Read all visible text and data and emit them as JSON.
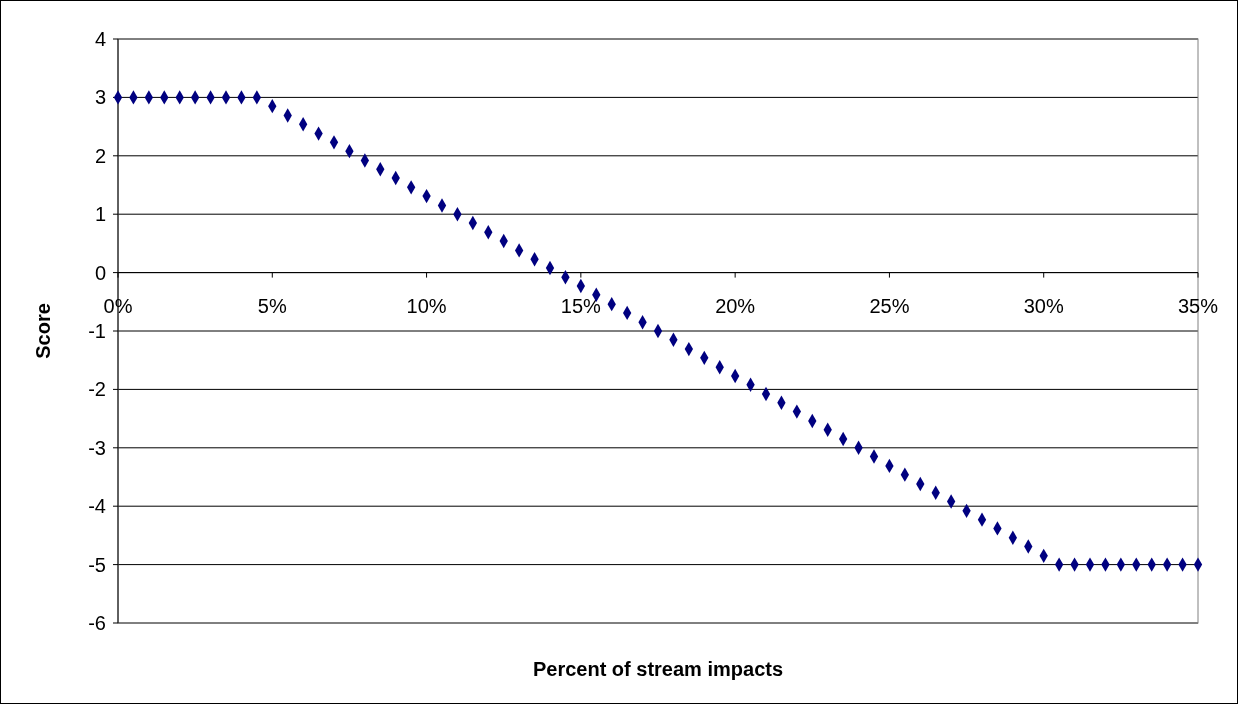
{
  "chart_data": {
    "type": "scatter",
    "xlabel": "Percent of stream impacts",
    "ylabel": "Score",
    "x": [
      0,
      0.5,
      1,
      1.5,
      2,
      2.5,
      3,
      3.5,
      4,
      4.5,
      5,
      5.5,
      6,
      6.5,
      7,
      7.5,
      8,
      8.5,
      9,
      9.5,
      10,
      10.5,
      11,
      11.5,
      12,
      12.5,
      13,
      13.5,
      14,
      14.5,
      15,
      15.5,
      16,
      16.5,
      17,
      17.5,
      18,
      18.5,
      19,
      19.5,
      20,
      20.5,
      21,
      21.5,
      22,
      22.5,
      23,
      23.5,
      24,
      24.5,
      25,
      25.5,
      26,
      26.5,
      27,
      27.5,
      28,
      28.5,
      29,
      29.5,
      30,
      30.5,
      31,
      31.5,
      32,
      32.5,
      33,
      33.5,
      34,
      34.5,
      35
    ],
    "series": [
      {
        "color": "#000080",
        "values": [
          3,
          3,
          3,
          3,
          3,
          3,
          3,
          3,
          3,
          3,
          2.85,
          2.69,
          2.54,
          2.38,
          2.23,
          2.08,
          1.92,
          1.77,
          1.62,
          1.46,
          1.31,
          1.15,
          1.0,
          0.85,
          0.69,
          0.54,
          0.38,
          0.23,
          0.08,
          -0.08,
          -0.23,
          -0.38,
          -0.54,
          -0.69,
          -0.85,
          -1.0,
          -1.15,
          -1.31,
          -1.46,
          -1.62,
          -1.77,
          -1.92,
          -2.08,
          -2.23,
          -2.38,
          -2.54,
          -2.69,
          -2.85,
          -3.0,
          -3.15,
          -3.31,
          -3.46,
          -3.62,
          -3.77,
          -3.92,
          -4.08,
          -4.23,
          -4.38,
          -4.54,
          -4.69,
          -4.85,
          -5,
          -5,
          -5,
          -5,
          -5,
          -5,
          -5,
          -5,
          -5,
          -5
        ]
      }
    ],
    "xlim": [
      0,
      35
    ],
    "xticks": [
      {
        "value": 0,
        "label": "0%"
      },
      {
        "value": 5,
        "label": "5%"
      },
      {
        "value": 10,
        "label": "10%"
      },
      {
        "value": 15,
        "label": "15%"
      },
      {
        "value": 20,
        "label": "20%"
      },
      {
        "value": 25,
        "label": "25%"
      },
      {
        "value": 30,
        "label": "30%"
      },
      {
        "value": 35,
        "label": "35%"
      }
    ],
    "ylim": [
      -6,
      4
    ],
    "yticks": [
      -6,
      -5,
      -4,
      -3,
      -2,
      -1,
      0,
      1,
      2,
      3,
      4
    ],
    "grid": "y",
    "marker": "diamond"
  }
}
